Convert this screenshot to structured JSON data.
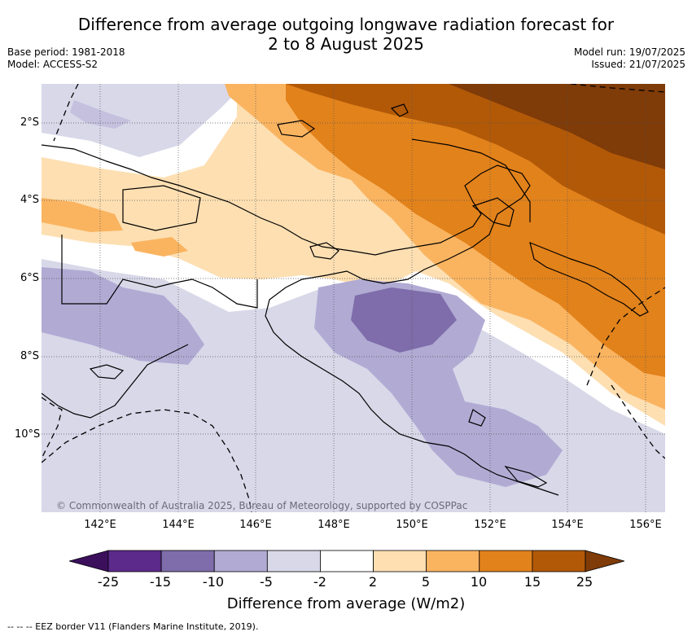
{
  "header": {
    "title_line1": "Difference from average outgoing longwave radiation forecast for",
    "title_line2": "2 to 8 August 2025",
    "base_period": "Base period: 1981-2018",
    "model": "Model: ACCESS-S2",
    "model_run": "Model run: 19/07/2025",
    "issued": "Issued: 21/07/2025"
  },
  "map": {
    "lat_labels": [
      "2°S",
      "4°S",
      "6°S",
      "8°S",
      "10°S"
    ],
    "lon_labels": [
      "142°E",
      "144°E",
      "146°E",
      "148°E",
      "150°E",
      "152°E",
      "154°E",
      "156°E"
    ],
    "copyright": "© Commonwealth of Australia 2025, Bureau of Meteorology, supported by COSPPac"
  },
  "legend": {
    "ticks": [
      "-25",
      "-15",
      "-10",
      "-5",
      "-2",
      "2",
      "5",
      "10",
      "15",
      "25"
    ],
    "colors": [
      "#3b0f5c",
      "#5c2a8a",
      "#7e6daa",
      "#b1abd4",
      "#d8d8e9",
      "#ffffff",
      "#fddfb2",
      "#fab460",
      "#e2821b",
      "#b25908",
      "#7f3b08"
    ],
    "label": "Difference from average (W/m2)"
  },
  "footer": {
    "eez_note": "--  --  -- EEZ border V11 (Flanders Marine Institute, 2019)."
  }
}
